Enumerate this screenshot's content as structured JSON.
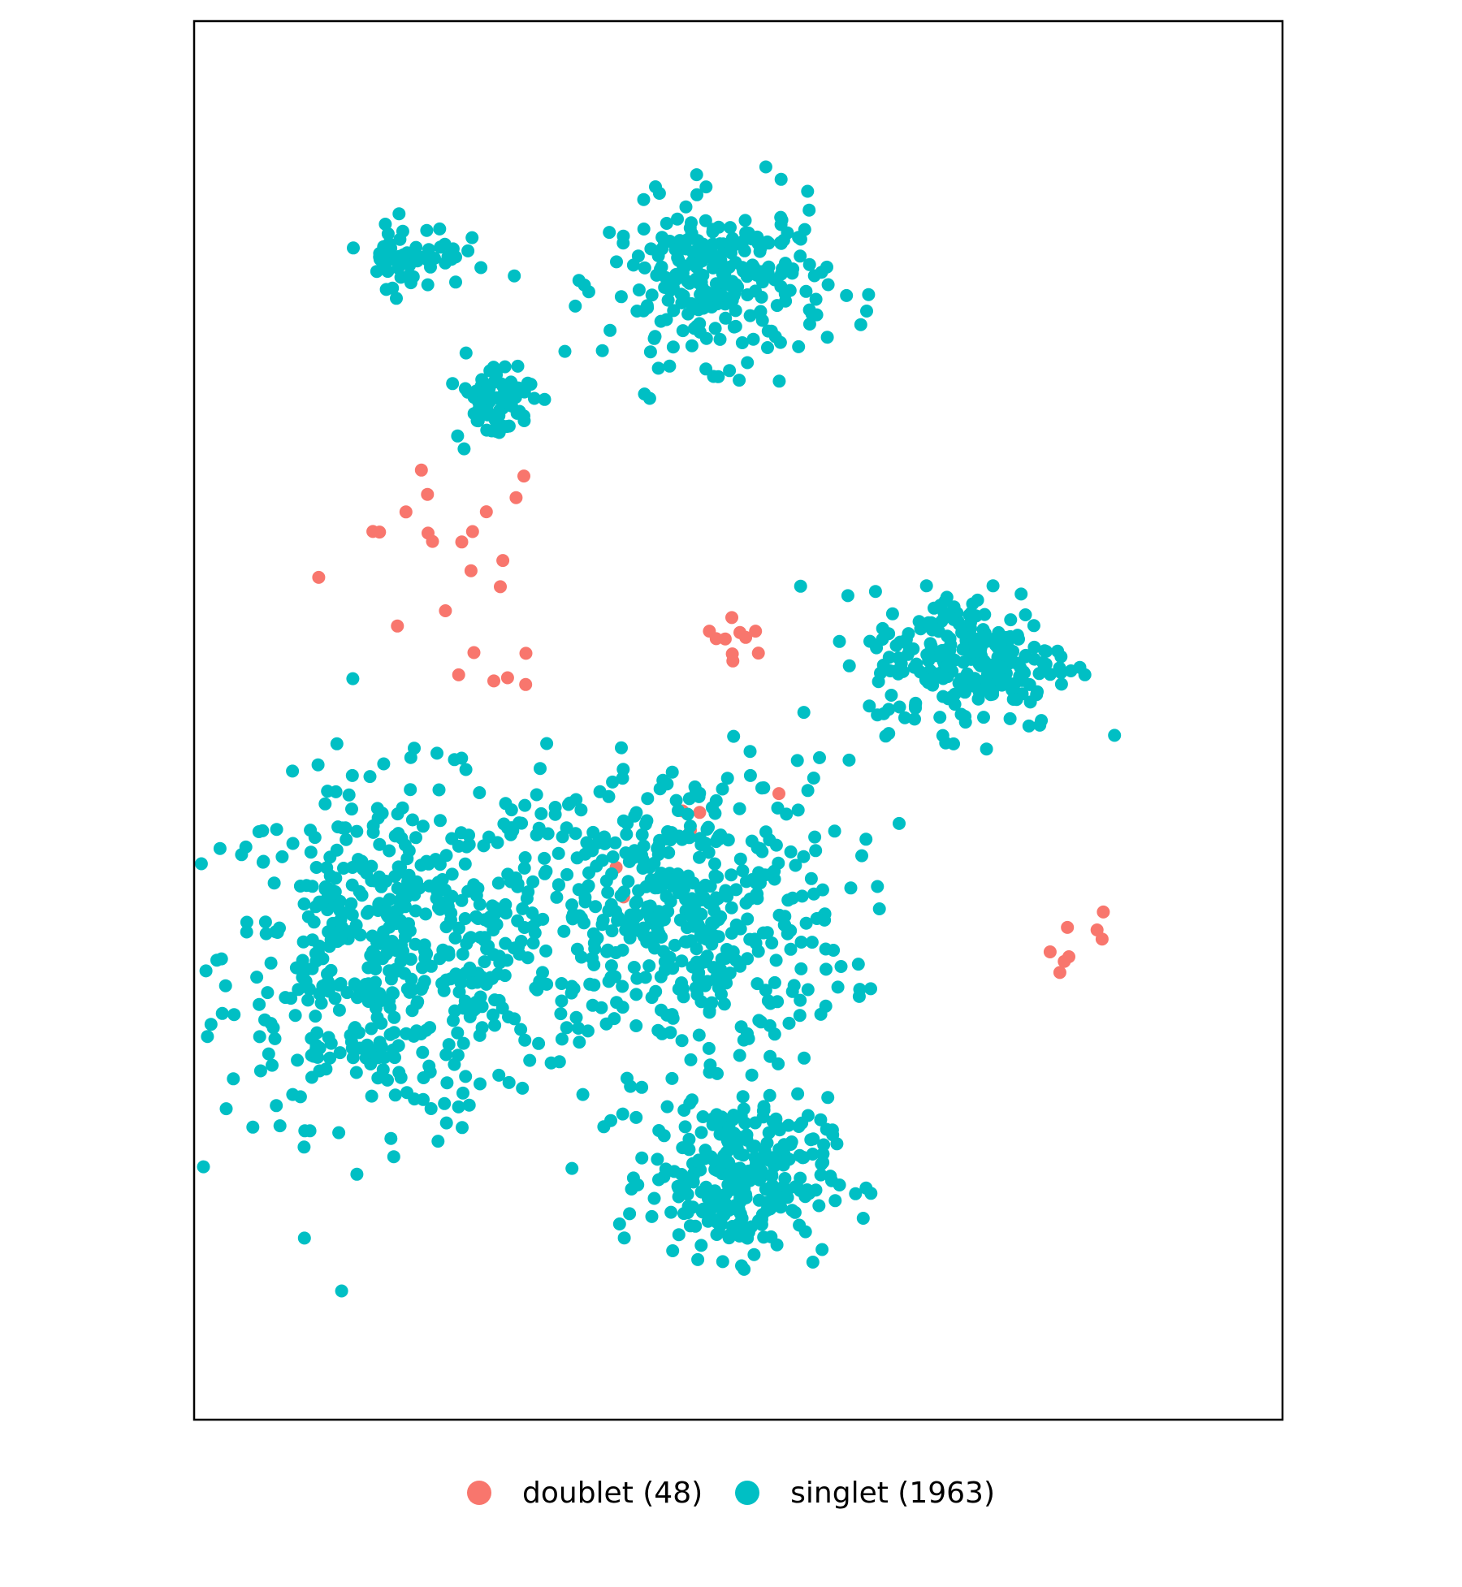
{
  "chart_data": {
    "type": "scatter",
    "title": "",
    "xlabel": "",
    "ylabel": "",
    "ticks": "none",
    "grid": false,
    "legend_position": "bottom",
    "series": [
      {
        "name": "doublet (48)",
        "color": "#F8766D",
        "cluster_regions": [
          {
            "cx": 650,
            "cy": 1870,
            "sx": 320,
            "sy": 240,
            "n": 18
          },
          {
            "cx": 1400,
            "cy": 1680,
            "sx": 90,
            "sy": 40,
            "n": 10
          },
          {
            "cx": 2300,
            "cy": 1020,
            "sx": 120,
            "sy": 90,
            "n": 8
          },
          {
            "cx": 780,
            "cy": 1600,
            "sx": 100,
            "sy": 60,
            "n": 6
          },
          {
            "cx": 1300,
            "cy": 1200,
            "sx": 250,
            "sy": 200,
            "n": 6
          }
        ]
      },
      {
        "name": "singlet (1963)",
        "color": "#00BFC4",
        "cluster_regions": [
          {
            "cx": 500,
            "cy": 1000,
            "sx": 420,
            "sy": 360,
            "n": 520
          },
          {
            "cx": 1250,
            "cy": 1080,
            "sx": 430,
            "sy": 330,
            "n": 480
          },
          {
            "cx": 1350,
            "cy": 2440,
            "sx": 280,
            "sy": 170,
            "n": 260
          },
          {
            "cx": 1400,
            "cy": 520,
            "sx": 230,
            "sy": 170,
            "n": 290
          },
          {
            "cx": 2000,
            "cy": 1630,
            "sx": 260,
            "sy": 150,
            "n": 240
          },
          {
            "cx": 560,
            "cy": 2500,
            "sx": 130,
            "sy": 70,
            "n": 60
          },
          {
            "cx": 770,
            "cy": 2190,
            "sx": 100,
            "sy": 90,
            "n": 70
          },
          {
            "cx": 900,
            "cy": 1100,
            "sx": 220,
            "sy": 240,
            "n": 43
          }
        ]
      }
    ]
  }
}
